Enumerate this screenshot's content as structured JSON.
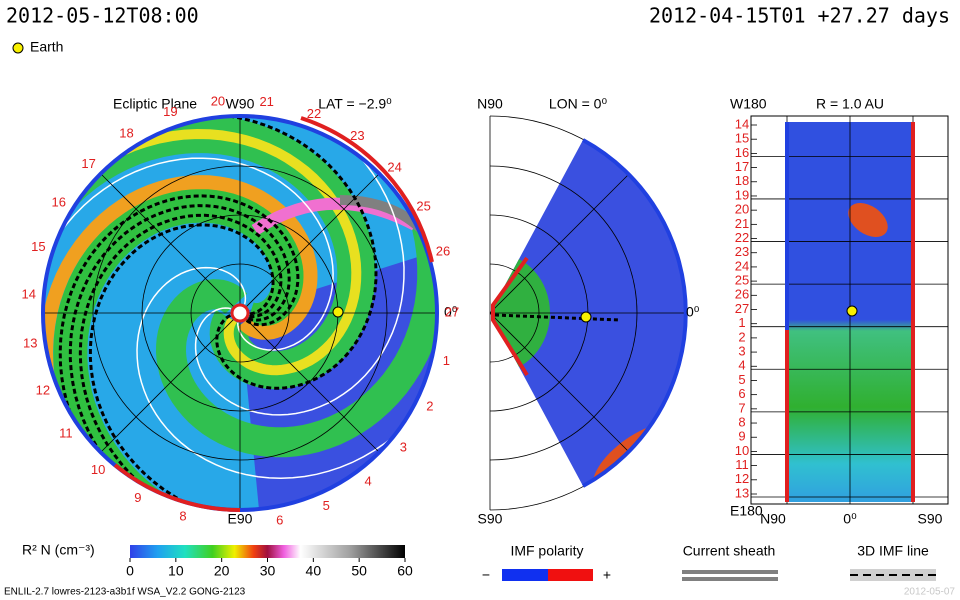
{
  "header": {
    "left": "2012-05-12T08:00",
    "right": "2012-04-15T01 +27.27 days",
    "earth": "Earth"
  },
  "ecliptic": {
    "title": "Ecliptic Plane",
    "lat": "LAT = −2.9⁰",
    "top": "W90",
    "bottom": "E90",
    "right": "0⁰",
    "days": [
      "27",
      "1",
      "2",
      "3",
      "4",
      "5",
      "6",
      "8",
      "9",
      "10",
      "11",
      "12",
      "13",
      "14",
      "15",
      "16",
      "17",
      "18",
      "19",
      "20",
      "21",
      "22",
      "23",
      "24",
      "25",
      "26"
    ]
  },
  "meridional": {
    "top": "N90",
    "lon": "LON = 0⁰",
    "right": "0⁰",
    "bottom": "S90"
  },
  "radial": {
    "top": "W180",
    "title": "R = 1.0 AU",
    "bottom": "E180",
    "x_left": "N90",
    "x_mid": "0⁰",
    "x_right": "S90",
    "days": [
      "14",
      "15",
      "16",
      "17",
      "18",
      "19",
      "20",
      "21",
      "22",
      "23",
      "24",
      "25",
      "26",
      "27",
      "1",
      "2",
      "3",
      "4",
      "5",
      "6",
      "7",
      "8",
      "9",
      "10",
      "11",
      "12",
      "13"
    ]
  },
  "colorbar": {
    "label": "R² N (cm⁻³)",
    "ticks": [
      0,
      10,
      20,
      30,
      40,
      50,
      60
    ]
  },
  "imf": {
    "title": "IMF polarity",
    "minus": "−",
    "plus": "+"
  },
  "sheath": {
    "title": "Current sheath"
  },
  "imf_line": {
    "title": "3D IMF line"
  },
  "footer": {
    "left": "ENLIL-2.7 lowres-2123-a3b1f WSA_V2.2 GONG-2123",
    "right": "2012-05-07"
  }
}
